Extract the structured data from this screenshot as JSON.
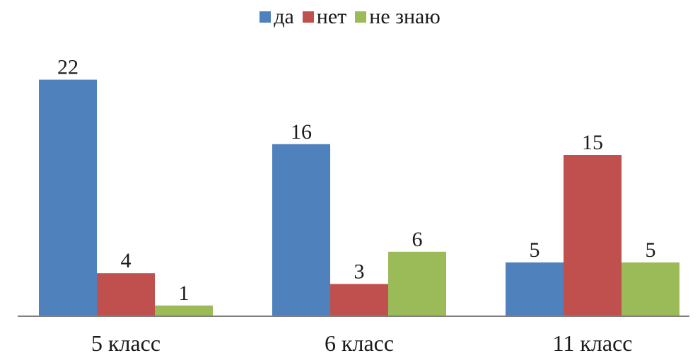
{
  "chart_data": {
    "type": "bar",
    "categories": [
      "5 класс",
      "6 класс",
      "11 класс"
    ],
    "series": [
      {
        "name": "да",
        "color": "#4f81bd",
        "values": [
          22,
          16,
          5
        ]
      },
      {
        "name": "нет",
        "color": "#c0504d",
        "values": [
          4,
          3,
          15
        ]
      },
      {
        "name": "не знаю",
        "color": "#9bbb59",
        "values": [
          1,
          6,
          5
        ]
      }
    ],
    "ylim": [
      0,
      22
    ],
    "grid": false,
    "legend": "top-center",
    "data_labels": true
  }
}
